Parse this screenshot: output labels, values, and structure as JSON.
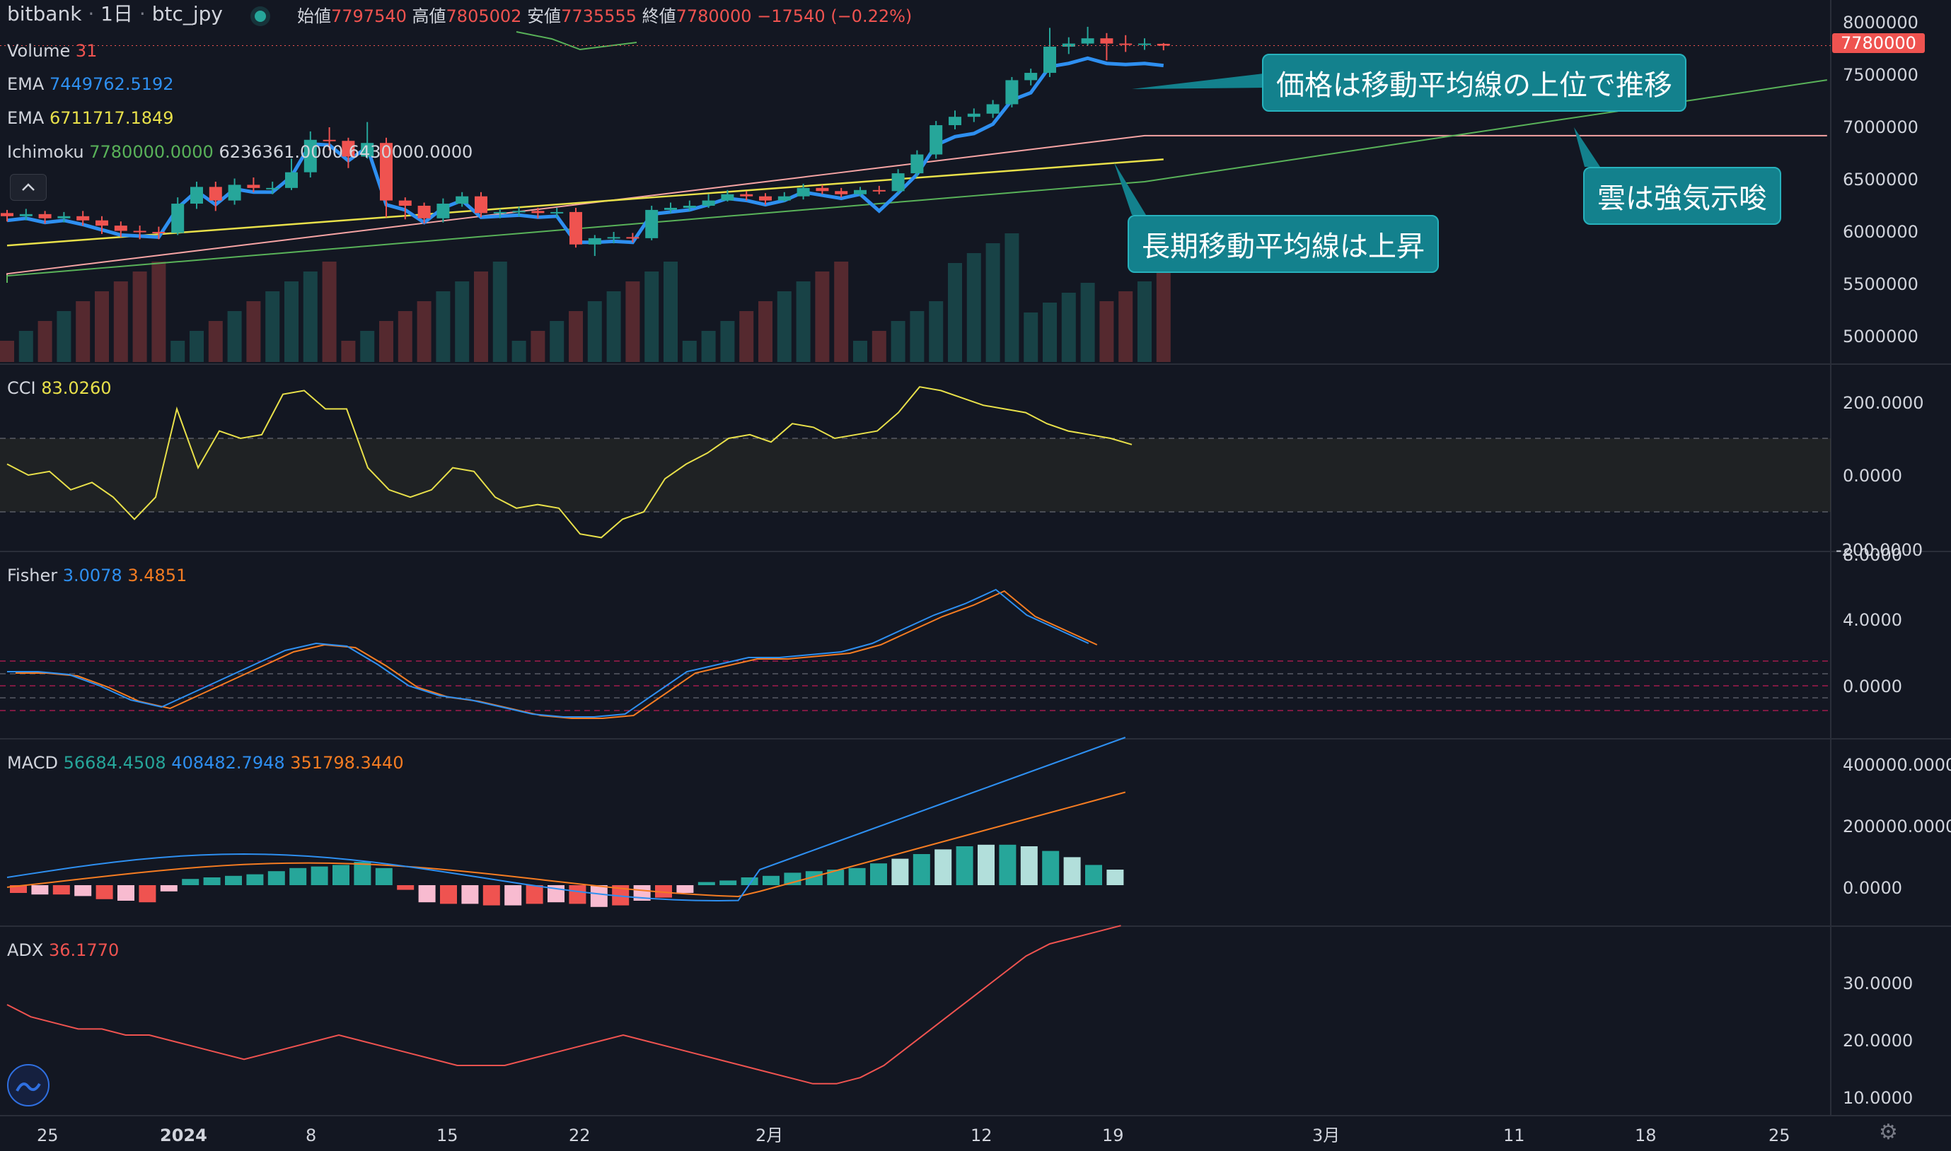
{
  "header": {
    "exchange": "bitbank",
    "interval": "1日",
    "symbol": "btc_jpy",
    "open_label": "始値",
    "open": "7797540",
    "high_label": "高値",
    "high": "7805002",
    "low_label": "安値",
    "low": "7735555",
    "close_label": "終値",
    "close": "7780000",
    "change": "−17540 (−0.22%)"
  },
  "indicators": {
    "volume": {
      "label": "Volume",
      "value": "31"
    },
    "ema1": {
      "label": "EMA",
      "value": "7449762.5192"
    },
    "ema2": {
      "label": "EMA",
      "value": "6711717.1849"
    },
    "ichimoku": {
      "label": "Ichimoku",
      "v1": "7780000.0000",
      "v2": "6236361.0000",
      "v3": "6430000.0000"
    },
    "cci": {
      "label": "CCI",
      "value": "83.0260"
    },
    "fisher": {
      "label": "Fisher",
      "v1": "3.0078",
      "v2": "3.4851"
    },
    "macd": {
      "label": "MACD",
      "v1": "56684.4508",
      "v2": "408482.7948",
      "v3": "351798.3440"
    },
    "adx": {
      "label": "ADX",
      "value": "36.1770"
    }
  },
  "price_axis": {
    "ticks": [
      "8000000",
      "7500000",
      "7000000",
      "6500000",
      "6000000",
      "5500000",
      "5000000"
    ],
    "current": "7780000"
  },
  "cci_axis": [
    "200.0000",
    "0.0000",
    "-200.0000"
  ],
  "fisher_axis": [
    "8.0000",
    "4.0000",
    "0.0000"
  ],
  "macd_axis": [
    "400000.0000",
    "200000.0000",
    "0.0000"
  ],
  "adx_axis": [
    "30.0000",
    "20.0000",
    "10.0000"
  ],
  "time_axis": [
    "25",
    "2024",
    "8",
    "15",
    "22",
    "2月",
    "12",
    "19",
    "3月",
    "11",
    "18",
    "25"
  ],
  "annotations": {
    "a1": "価格は移動平均線の上位で推移",
    "a2": "雲は強気示唆",
    "a3": "長期移動平均線は上昇"
  },
  "colors": {
    "bg": "#131722",
    "up": "#26a69a",
    "down": "#ef5350",
    "ema_fast": "#2e8ff0",
    "ema_slow": "#e8e04a",
    "callout": "#13818d"
  },
  "chart_data": {
    "type": "candlestick",
    "candles": [
      [
        6180000,
        6150000,
        6210000,
        6100000
      ],
      [
        6150000,
        6170000,
        6220000,
        6110000
      ],
      [
        6170000,
        6130000,
        6200000,
        6080000
      ],
      [
        6130000,
        6150000,
        6190000,
        6090000
      ],
      [
        6150000,
        6110000,
        6200000,
        6060000
      ],
      [
        6110000,
        6060000,
        6150000,
        5980000
      ],
      [
        6060000,
        6010000,
        6100000,
        5950000
      ],
      [
        6010000,
        6000000,
        6060000,
        5930000
      ],
      [
        6000000,
        5990000,
        6050000,
        5930000
      ],
      [
        5990000,
        6270000,
        6330000,
        5970000
      ],
      [
        6270000,
        6430000,
        6480000,
        6220000
      ],
      [
        6430000,
        6300000,
        6480000,
        6200000
      ],
      [
        6300000,
        6450000,
        6510000,
        6260000
      ],
      [
        6450000,
        6420000,
        6520000,
        6380000
      ],
      [
        6420000,
        6420000,
        6480000,
        6360000
      ],
      [
        6420000,
        6570000,
        6700000,
        6400000
      ],
      [
        6570000,
        6880000,
        6960000,
        6520000
      ],
      [
        6880000,
        6870000,
        7000000,
        6780000
      ],
      [
        6870000,
        6720000,
        6900000,
        6610000
      ],
      [
        6720000,
        6850000,
        7050000,
        6700000
      ],
      [
        6850000,
        6300000,
        6900000,
        6140000
      ],
      [
        6300000,
        6250000,
        6330000,
        6120000
      ],
      [
        6250000,
        6130000,
        6280000,
        6080000
      ],
      [
        6130000,
        6270000,
        6320000,
        6090000
      ],
      [
        6270000,
        6340000,
        6380000,
        6240000
      ],
      [
        6340000,
        6180000,
        6380000,
        6140000
      ],
      [
        6180000,
        6190000,
        6220000,
        6130000
      ],
      [
        6190000,
        6200000,
        6240000,
        6150000
      ],
      [
        6200000,
        6180000,
        6230000,
        6130000
      ],
      [
        6180000,
        6190000,
        6230000,
        6140000
      ],
      [
        6190000,
        5880000,
        6230000,
        5850000
      ],
      [
        5880000,
        5940000,
        5970000,
        5770000
      ],
      [
        5940000,
        5950000,
        6000000,
        5890000
      ],
      [
        5950000,
        5940000,
        5990000,
        5900000
      ],
      [
        5940000,
        6210000,
        6250000,
        5920000
      ],
      [
        6210000,
        6230000,
        6280000,
        6180000
      ],
      [
        6230000,
        6250000,
        6300000,
        6200000
      ],
      [
        6250000,
        6300000,
        6360000,
        6230000
      ],
      [
        6300000,
        6360000,
        6400000,
        6290000
      ],
      [
        6360000,
        6340000,
        6390000,
        6300000
      ],
      [
        6340000,
        6300000,
        6370000,
        6260000
      ],
      [
        6300000,
        6340000,
        6380000,
        6290000
      ],
      [
        6340000,
        6420000,
        6460000,
        6310000
      ],
      [
        6420000,
        6390000,
        6450000,
        6360000
      ],
      [
        6390000,
        6360000,
        6420000,
        6330000
      ],
      [
        6360000,
        6400000,
        6430000,
        6340000
      ],
      [
        6400000,
        6390000,
        6440000,
        6360000
      ],
      [
        6390000,
        6560000,
        6600000,
        6370000
      ],
      [
        6560000,
        6740000,
        6780000,
        6530000
      ],
      [
        6740000,
        7020000,
        7060000,
        6700000
      ],
      [
        7020000,
        7100000,
        7160000,
        6980000
      ],
      [
        7100000,
        7130000,
        7180000,
        7050000
      ],
      [
        7130000,
        7220000,
        7260000,
        7090000
      ],
      [
        7220000,
        7450000,
        7480000,
        7190000
      ],
      [
        7450000,
        7520000,
        7560000,
        7400000
      ],
      [
        7520000,
        7770000,
        7950000,
        7480000
      ],
      [
        7770000,
        7800000,
        7860000,
        7700000
      ],
      [
        7800000,
        7850000,
        7960000,
        7780000
      ],
      [
        7850000,
        7800000,
        7900000,
        7640000
      ],
      [
        7800000,
        7790000,
        7880000,
        7720000
      ],
      [
        7790000,
        7800000,
        7850000,
        7740000
      ],
      [
        7797540,
        7780000,
        7805002,
        7735555
      ]
    ]
  }
}
